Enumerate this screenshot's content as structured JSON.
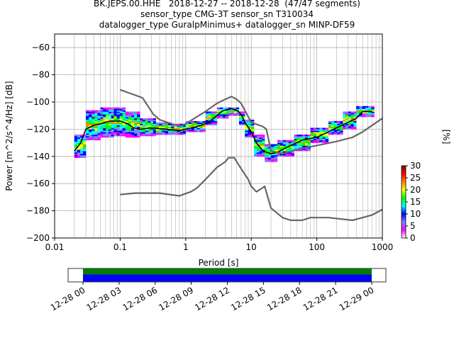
{
  "header": {
    "title_line1": "BK.JEPS.00.HHE   2018-12-27 -- 2018-12-28  (47/47 segments)",
    "title_line2": "sensor_type CMG-3T sensor_sn T310034",
    "title_line3": "datalogger_type GuralpMinimus+ datalogger_sn MINP-DF59"
  },
  "chart_data": [
    {
      "type": "heatmap",
      "subtype": "probabilistic power spectral density",
      "xlabel": "Period [s]",
      "ylabel": "Power [m^2/s^4/Hz] [dB]",
      "xscale": "log",
      "xlim": [
        0.01,
        1000
      ],
      "ylim": [
        -200,
        -50
      ],
      "x_ticks": [
        0.01,
        0.1,
        1,
        10,
        100,
        1000
      ],
      "x_tick_labels": [
        "0.01",
        "0.1",
        "1",
        "10",
        "100",
        "1000"
      ],
      "y_ticks": [
        -200,
        -180,
        -160,
        -140,
        -120,
        -100,
        -80,
        -60
      ],
      "y_tick_labels": [
        "−200",
        "−180",
        "−160",
        "−140",
        "−120",
        "−100",
        "−80",
        "−60"
      ],
      "grid": true,
      "series": [
        {
          "name": "",
          "color": "#000000",
          "points": [
            [
              0.02,
              -136
            ],
            [
              0.025,
              -130
            ],
            [
              0.03,
              -120
            ],
            [
              0.04,
              -117
            ],
            [
              0.05,
              -116
            ],
            [
              0.07,
              -114
            ],
            [
              0.1,
              -114
            ],
            [
              0.13,
              -116
            ],
            [
              0.16,
              -119
            ],
            [
              0.2,
              -120
            ],
            [
              0.3,
              -119
            ],
            [
              0.5,
              -120
            ],
            [
              0.8,
              -121
            ],
            [
              1.0,
              -120
            ],
            [
              1.5,
              -118
            ],
            [
              2.0,
              -116
            ],
            [
              2.5,
              -113
            ],
            [
              3.0,
              -110
            ],
            [
              3.5,
              -107
            ],
            [
              4.0,
              -106
            ],
            [
              5.0,
              -105
            ],
            [
              6.0,
              -106
            ],
            [
              7.0,
              -109
            ],
            [
              8.0,
              -115
            ],
            [
              10,
              -122
            ],
            [
              12,
              -130
            ],
            [
              15,
              -136
            ],
            [
              20,
              -138
            ],
            [
              25,
              -137
            ],
            [
              30,
              -135
            ],
            [
              40,
              -132
            ],
            [
              60,
              -128
            ],
            [
              100,
              -126
            ],
            [
              150,
              -122
            ],
            [
              200,
              -119
            ],
            [
              300,
              -115
            ],
            [
              400,
              -112
            ],
            [
              500,
              -107
            ],
            [
              700,
              -107
            ]
          ]
        },
        {
          "name": "",
          "color": "#666666",
          "points": [
            [
              0.1,
              -91
            ],
            [
              0.17,
              -95
            ],
            [
              0.22,
              -97
            ],
            [
              0.32,
              -109
            ],
            [
              0.4,
              -113
            ],
            [
              0.8,
              -118
            ],
            [
              1.0,
              -116
            ],
            [
              2.0,
              -107
            ],
            [
              3.0,
              -101
            ],
            [
              4.0,
              -98
            ],
            [
              5.0,
              -96
            ],
            [
              6.0,
              -98
            ],
            [
              7.0,
              -101
            ],
            [
              10,
              -115
            ],
            [
              15,
              -118
            ],
            [
              17,
              -120
            ],
            [
              20,
              -136
            ],
            [
              30,
              -138
            ],
            [
              60,
              -134
            ],
            [
              100,
              -132
            ],
            [
              200,
              -129
            ],
            [
              350,
              -126
            ],
            [
              500,
              -122
            ],
            [
              1000,
              -112
            ]
          ]
        },
        {
          "name": "",
          "color": "#666666",
          "points": [
            [
              0.1,
              -168
            ],
            [
              0.17,
              -167
            ],
            [
              0.4,
              -167
            ],
            [
              0.8,
              -169
            ],
            [
              1.2,
              -166
            ],
            [
              1.5,
              -163
            ],
            [
              2.0,
              -157
            ],
            [
              3.0,
              -148
            ],
            [
              4.0,
              -144
            ],
            [
              4.5,
              -141
            ],
            [
              5.5,
              -141
            ],
            [
              7.0,
              -149
            ],
            [
              9.0,
              -157
            ],
            [
              10,
              -162
            ],
            [
              12,
              -166
            ],
            [
              15,
              -163
            ],
            [
              16,
              -162
            ],
            [
              20,
              -178
            ],
            [
              30,
              -185
            ],
            [
              40,
              -187
            ],
            [
              60,
              -187
            ],
            [
              80,
              -185
            ],
            [
              150,
              -185
            ],
            [
              350,
              -187
            ],
            [
              500,
              -185
            ],
            [
              700,
              -183
            ],
            [
              1000,
              -179
            ]
          ]
        }
      ],
      "heatmap_bands": [
        {
          "start": 0.02,
          "end": 0.03,
          "low": -141,
          "high": -124
        },
        {
          "start": 0.03,
          "end": 0.05,
          "low": -128,
          "high": -106
        },
        {
          "start": 0.05,
          "end": 0.08,
          "low": -126,
          "high": -104
        },
        {
          "start": 0.08,
          "end": 0.12,
          "low": -125,
          "high": -104
        },
        {
          "start": 0.12,
          "end": 0.2,
          "low": -126,
          "high": -107
        },
        {
          "start": 0.2,
          "end": 0.35,
          "low": -125,
          "high": -112
        },
        {
          "start": 0.35,
          "end": 0.6,
          "low": -124,
          "high": -115
        },
        {
          "start": 0.6,
          "end": 1.0,
          "low": -124,
          "high": -116
        },
        {
          "start": 1.0,
          "end": 2.0,
          "low": -122,
          "high": -114
        },
        {
          "start": 2.0,
          "end": 3.0,
          "low": -117,
          "high": -107
        },
        {
          "start": 3.0,
          "end": 4.5,
          "low": -112,
          "high": -104
        },
        {
          "start": 4.5,
          "end": 6.5,
          "low": -110,
          "high": -104
        },
        {
          "start": 6.5,
          "end": 8.0,
          "low": -117,
          "high": -107
        },
        {
          "start": 8.0,
          "end": 11,
          "low": -126,
          "high": -113
        },
        {
          "start": 11,
          "end": 16,
          "low": -140,
          "high": -124
        },
        {
          "start": 16,
          "end": 25,
          "low": -144,
          "high": -131
        },
        {
          "start": 25,
          "end": 45,
          "low": -140,
          "high": -128
        },
        {
          "start": 45,
          "end": 80,
          "low": -136,
          "high": -124
        },
        {
          "start": 80,
          "end": 150,
          "low": -130,
          "high": -119
        },
        {
          "start": 150,
          "end": 250,
          "low": -124,
          "high": -114
        },
        {
          "start": 250,
          "end": 400,
          "low": -120,
          "high": -107
        },
        {
          "start": 400,
          "end": 750,
          "low": -111,
          "high": -103
        }
      ],
      "colorbar": {
        "label": "[%]",
        "range": [
          0,
          30
        ],
        "ticks": [
          0,
          5,
          10,
          15,
          20,
          25,
          30
        ],
        "tick_labels": [
          "0",
          "5",
          "10",
          "15",
          "20",
          "25",
          "30"
        ],
        "colors": [
          "#ffffff",
          "#ff00ff",
          "#8080ff",
          "#0000ff",
          "#00ffff",
          "#00ff00",
          "#ffff00",
          "#ff8000",
          "#ff0000",
          "#800000"
        ]
      }
    },
    {
      "type": "timeline",
      "x_tick_labels": [
        "12-28 00",
        "12-28 03",
        "12-28 06",
        "12-28 09",
        "12-28 12",
        "12-28 15",
        "12-28 18",
        "12-28 21",
        "12-29 00"
      ],
      "x_hours": [
        0,
        3,
        6,
        9,
        12,
        15,
        18,
        21,
        24
      ],
      "coverage_start_hour": 0,
      "coverage_end_hour": 24,
      "segment_count": 47,
      "colors": {
        "data": "#0000ff",
        "gaps_ok": "#008000"
      }
    }
  ]
}
